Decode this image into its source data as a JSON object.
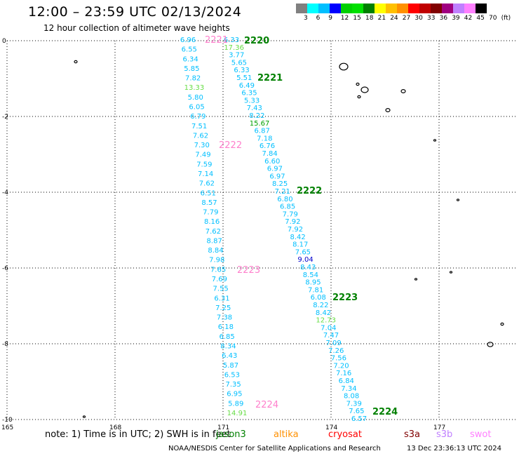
{
  "header": {
    "title": "12:00 – 23:59 UTC 02/13/2024",
    "subtitle": "12 hour collection of altimeter wave heights"
  },
  "colorbar": {
    "colors": [
      "#808080",
      "#00ffff",
      "#00bfff",
      "#0000ff",
      "#00d000",
      "#00e000",
      "#008000",
      "#ffff00",
      "#ffc000",
      "#ff9000",
      "#ff0000",
      "#c00000",
      "#800000",
      "#a00080",
      "#c080ff",
      "#ff80ff",
      "#000000"
    ],
    "labels": [
      "3",
      "6",
      "9",
      "12",
      "15",
      "18",
      "21",
      "24",
      "27",
      "30",
      "33",
      "36",
      "39",
      "42",
      "45",
      "70",
      "(ft)"
    ]
  },
  "axes": {
    "y_labels": [
      "0",
      "-2",
      "-4",
      "-6",
      "-8",
      "-10"
    ],
    "x_labels": [
      "165",
      "168",
      "171",
      "174",
      "177"
    ]
  },
  "tracks": [
    {
      "id": "left",
      "points": [
        {
          "v": "6.96",
          "c": "#00bfff"
        },
        {
          "v": "6.55",
          "c": "#00bfff"
        },
        {
          "v": "6.34",
          "c": "#00bfff"
        },
        {
          "v": "5.85",
          "c": "#00bfff"
        },
        {
          "v": "7.82",
          "c": "#00bfff"
        },
        {
          "v": "13.33",
          "c": "#66dd44"
        },
        {
          "v": "5.80",
          "c": "#00bfff"
        },
        {
          "v": "6.05",
          "c": "#00bfff"
        },
        {
          "v": "6.79",
          "c": "#00bfff"
        },
        {
          "v": "7.51",
          "c": "#00bfff"
        },
        {
          "v": "7.62",
          "c": "#00bfff"
        },
        {
          "v": "7.30",
          "c": "#00bfff"
        },
        {
          "v": "7.49",
          "c": "#00bfff"
        },
        {
          "v": "7.59",
          "c": "#00bfff"
        },
        {
          "v": "7.14",
          "c": "#00bfff"
        },
        {
          "v": "7.62",
          "c": "#00bfff"
        },
        {
          "v": "6.51",
          "c": "#00bfff"
        },
        {
          "v": "8.57",
          "c": "#00bfff"
        },
        {
          "v": "7.79",
          "c": "#00bfff"
        },
        {
          "v": "8.16",
          "c": "#00bfff"
        },
        {
          "v": "7.62",
          "c": "#00bfff"
        },
        {
          "v": "8.87",
          "c": "#00bfff"
        },
        {
          "v": "8.84",
          "c": "#00bfff"
        },
        {
          "v": "7.98",
          "c": "#00bfff"
        },
        {
          "v": "7.65",
          "c": "#00bfff"
        },
        {
          "v": "7.69",
          "c": "#00bfff"
        },
        {
          "v": "7.55",
          "c": "#00bfff"
        },
        {
          "v": "6.31",
          "c": "#00bfff"
        },
        {
          "v": "7.25",
          "c": "#00bfff"
        },
        {
          "v": "7.38",
          "c": "#00bfff"
        },
        {
          "v": "6.18",
          "c": "#00bfff"
        },
        {
          "v": "6.85",
          "c": "#00bfff"
        },
        {
          "v": "8.34",
          "c": "#00bfff"
        },
        {
          "v": "6.43",
          "c": "#00bfff"
        },
        {
          "v": "5.87",
          "c": "#00bfff"
        },
        {
          "v": "6.53",
          "c": "#00bfff"
        },
        {
          "v": "7.35",
          "c": "#00bfff"
        },
        {
          "v": "6.95",
          "c": "#00bfff"
        },
        {
          "v": "5.89",
          "c": "#00bfff"
        },
        {
          "v": "14.91",
          "c": "#66dd44"
        }
      ]
    },
    {
      "id": "right",
      "points": [
        {
          "v": "6.33",
          "c": "#00bfff"
        },
        {
          "v": "17.36",
          "c": "#66dd44"
        },
        {
          "v": "3.77",
          "c": "#00bfff"
        },
        {
          "v": "5.65",
          "c": "#00bfff"
        },
        {
          "v": "6.33",
          "c": "#00bfff"
        },
        {
          "v": "5.51",
          "c": "#00bfff"
        },
        {
          "v": "6.49",
          "c": "#00bfff"
        },
        {
          "v": "6.35",
          "c": "#00bfff"
        },
        {
          "v": "5.33",
          "c": "#00bfff"
        },
        {
          "v": "7.43",
          "c": "#00bfff"
        },
        {
          "v": "8.22",
          "c": "#00bfff"
        },
        {
          "v": "15.67",
          "c": "#00a000"
        },
        {
          "v": "6.87",
          "c": "#00bfff"
        },
        {
          "v": "7.18",
          "c": "#00bfff"
        },
        {
          "v": "6.76",
          "c": "#00bfff"
        },
        {
          "v": "7.84",
          "c": "#00bfff"
        },
        {
          "v": "6.60",
          "c": "#00bfff"
        },
        {
          "v": "6.97",
          "c": "#00bfff"
        },
        {
          "v": "6.97",
          "c": "#00bfff"
        },
        {
          "v": "8.25",
          "c": "#00bfff"
        },
        {
          "v": "7.21",
          "c": "#00bfff"
        },
        {
          "v": "6.80",
          "c": "#00bfff"
        },
        {
          "v": "6.85",
          "c": "#00bfff"
        },
        {
          "v": "7.79",
          "c": "#00bfff"
        },
        {
          "v": "7.92",
          "c": "#00bfff"
        },
        {
          "v": "7.92",
          "c": "#00bfff"
        },
        {
          "v": "8.42",
          "c": "#00bfff"
        },
        {
          "v": "8.17",
          "c": "#00bfff"
        },
        {
          "v": "7.65",
          "c": "#00bfff"
        },
        {
          "v": "9.04",
          "c": "#0000cc"
        },
        {
          "v": "8.43",
          "c": "#00bfff"
        },
        {
          "v": "8.54",
          "c": "#00bfff"
        },
        {
          "v": "8.95",
          "c": "#00bfff"
        },
        {
          "v": "7.81",
          "c": "#00bfff"
        },
        {
          "v": "6.08",
          "c": "#00bfff"
        },
        {
          "v": "8.22",
          "c": "#00bfff"
        },
        {
          "v": "8.42",
          "c": "#00bfff"
        },
        {
          "v": "12.73",
          "c": "#66dd44"
        },
        {
          "v": "7.04",
          "c": "#00bfff"
        },
        {
          "v": "7.47",
          "c": "#00bfff"
        },
        {
          "v": "7.09",
          "c": "#00bfff"
        },
        {
          "v": "7.26",
          "c": "#00bfff"
        },
        {
          "v": "7.56",
          "c": "#00bfff"
        },
        {
          "v": "7.20",
          "c": "#00bfff"
        },
        {
          "v": "7.16",
          "c": "#00bfff"
        },
        {
          "v": "6.84",
          "c": "#00bfff"
        },
        {
          "v": "7.34",
          "c": "#00bfff"
        },
        {
          "v": "8.08",
          "c": "#00bfff"
        },
        {
          "v": "7.39",
          "c": "#00bfff"
        },
        {
          "v": "7.65",
          "c": "#00bfff"
        },
        {
          "v": "6.57",
          "c": "#00bfff"
        }
      ]
    }
  ],
  "time_labels": {
    "green": [
      "2220",
      "2221",
      "2222",
      "2223",
      "2224"
    ],
    "pink": [
      "2221",
      "2222",
      "2223",
      "2224"
    ]
  },
  "legend": {
    "note": "note:  1) Time is in UTC; 2) SWH is in feet",
    "satellites": [
      {
        "name": "jason3",
        "color": "#008000"
      },
      {
        "name": "altika",
        "color": "#ff9000"
      },
      {
        "name": "cryosat",
        "color": "#ff0000"
      },
      {
        "name": "s3a",
        "color": "#800000"
      },
      {
        "name": "s3b",
        "color": "#c080ff"
      },
      {
        "name": "swot",
        "color": "#ff80ff"
      }
    ]
  },
  "footer": {
    "credit": "NOAA/NESDIS Center for Satellite Applications and Research",
    "timestamp": "13 Dec 23:36:13 UTC 2024"
  }
}
